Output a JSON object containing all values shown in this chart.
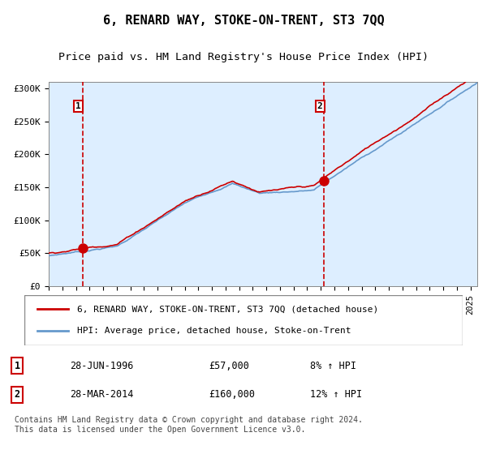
{
  "title": "6, RENARD WAY, STOKE-ON-TRENT, ST3 7QQ",
  "subtitle": "Price paid vs. HM Land Registry's House Price Index (HPI)",
  "ylabel_ticks": [
    "£0",
    "£50K",
    "£100K",
    "£150K",
    "£200K",
    "£250K",
    "£300K"
  ],
  "ytick_values": [
    0,
    50000,
    100000,
    150000,
    200000,
    250000,
    300000
  ],
  "ylim": [
    0,
    310000
  ],
  "xlim_start": 1994.0,
  "xlim_end": 2025.5,
  "sale1_date": 1996.49,
  "sale1_price": 57000,
  "sale2_date": 2014.24,
  "sale2_price": 160000,
  "sale1_label": "1",
  "sale2_label": "2",
  "hpi_color": "#6699cc",
  "price_color": "#cc0000",
  "dashed_line_color": "#cc0000",
  "background_plot": "#ddeeff",
  "background_hatched": "#ccddee",
  "grid_color": "#bbccdd",
  "legend_line1": "6, RENARD WAY, STOKE-ON-TRENT, ST3 7QQ (detached house)",
  "legend_line2": "HPI: Average price, detached house, Stoke-on-Trent",
  "annot1_num": "1",
  "annot1_date": "28-JUN-1996",
  "annot1_price": "£57,000",
  "annot1_hpi": "8% ↑ HPI",
  "annot2_num": "2",
  "annot2_date": "28-MAR-2014",
  "annot2_price": "£160,000",
  "annot2_hpi": "12% ↑ HPI",
  "footnote": "Contains HM Land Registry data © Crown copyright and database right 2024.\nThis data is licensed under the Open Government Licence v3.0.",
  "title_fontsize": 11,
  "subtitle_fontsize": 9.5,
  "tick_fontsize": 8,
  "legend_fontsize": 8,
  "annot_fontsize": 8.5,
  "footnote_fontsize": 7
}
